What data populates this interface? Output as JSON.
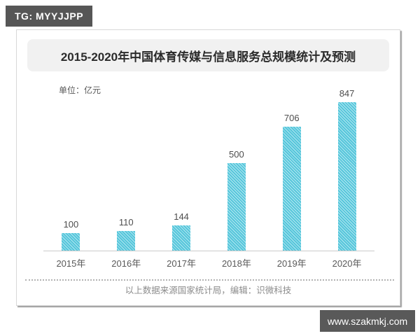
{
  "watermarks": {
    "top_badge": "TG: MYYJJPP",
    "bottom_badge": "www.szakmkj.com"
  },
  "card": {
    "title": "2015-2020年中国体育传媒与信息服务总规模统计及预测",
    "unit_label": "单位：亿元",
    "footer_note": "以上数据来源国家统计局，编辑：识微科技"
  },
  "chart_data": {
    "type": "bar",
    "title": "2015-2020年中国体育传媒与信息服务总规模统计及预测",
    "unit": "亿元",
    "categories": [
      "2015年",
      "2016年",
      "2017年",
      "2018年",
      "2019年",
      "2020年"
    ],
    "values": [
      100,
      110,
      144,
      500,
      706,
      847
    ],
    "xlabel": "",
    "ylabel": "亿元",
    "ylim": [
      0,
      900
    ],
    "grid": false,
    "legend": false,
    "data_labels": true,
    "bar_color": "#56c6db",
    "bar_pattern": "diagonal-hatch"
  },
  "colors": {
    "badge_bg": "#565656",
    "badge_text": "#ffffff",
    "title_box_bg": "#f1f1f1",
    "bar_fill": "#56c6db",
    "bar_hatch_light": "#b4e8f1",
    "axis_line": "#cccccc",
    "label_text": "#595959",
    "footer_text": "#8c8c8c"
  }
}
